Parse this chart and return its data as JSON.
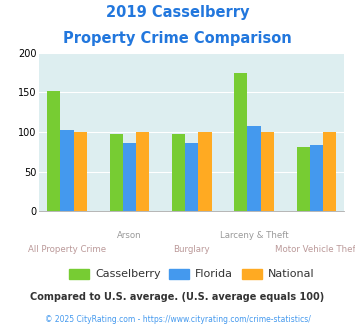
{
  "title_line1": "2019 Casselberry",
  "title_line2": "Property Crime Comparison",
  "casselberry": [
    152,
    97,
    97,
    175,
    81
  ],
  "florida": [
    102,
    86,
    86,
    108,
    84
  ],
  "national": [
    100,
    100,
    100,
    100,
    100
  ],
  "color_casselberry": "#77cc33",
  "color_florida": "#4499ee",
  "color_national": "#ffaa22",
  "ylim": [
    0,
    200
  ],
  "yticks": [
    0,
    50,
    100,
    150,
    200
  ],
  "bg_color": "#ddeef0",
  "title_color": "#2277dd",
  "x_labels_top": [
    "",
    "Arson",
    "",
    "Larceny & Theft",
    ""
  ],
  "x_labels_bottom": [
    "All Property Crime",
    "",
    "Burglary",
    "",
    "Motor Vehicle Theft"
  ],
  "xlabel_top_color": "#999999",
  "xlabel_bot_color": "#bb9999",
  "legend_label_casselberry": "Casselberry",
  "legend_label_florida": "Florida",
  "legend_label_national": "National",
  "legend_text_color": "#333333",
  "footnote1": "Compared to U.S. average. (U.S. average equals 100)",
  "footnote2": "© 2025 CityRating.com - https://www.cityrating.com/crime-statistics/",
  "footnote1_color": "#333333",
  "footnote2_color": "#4499ee"
}
